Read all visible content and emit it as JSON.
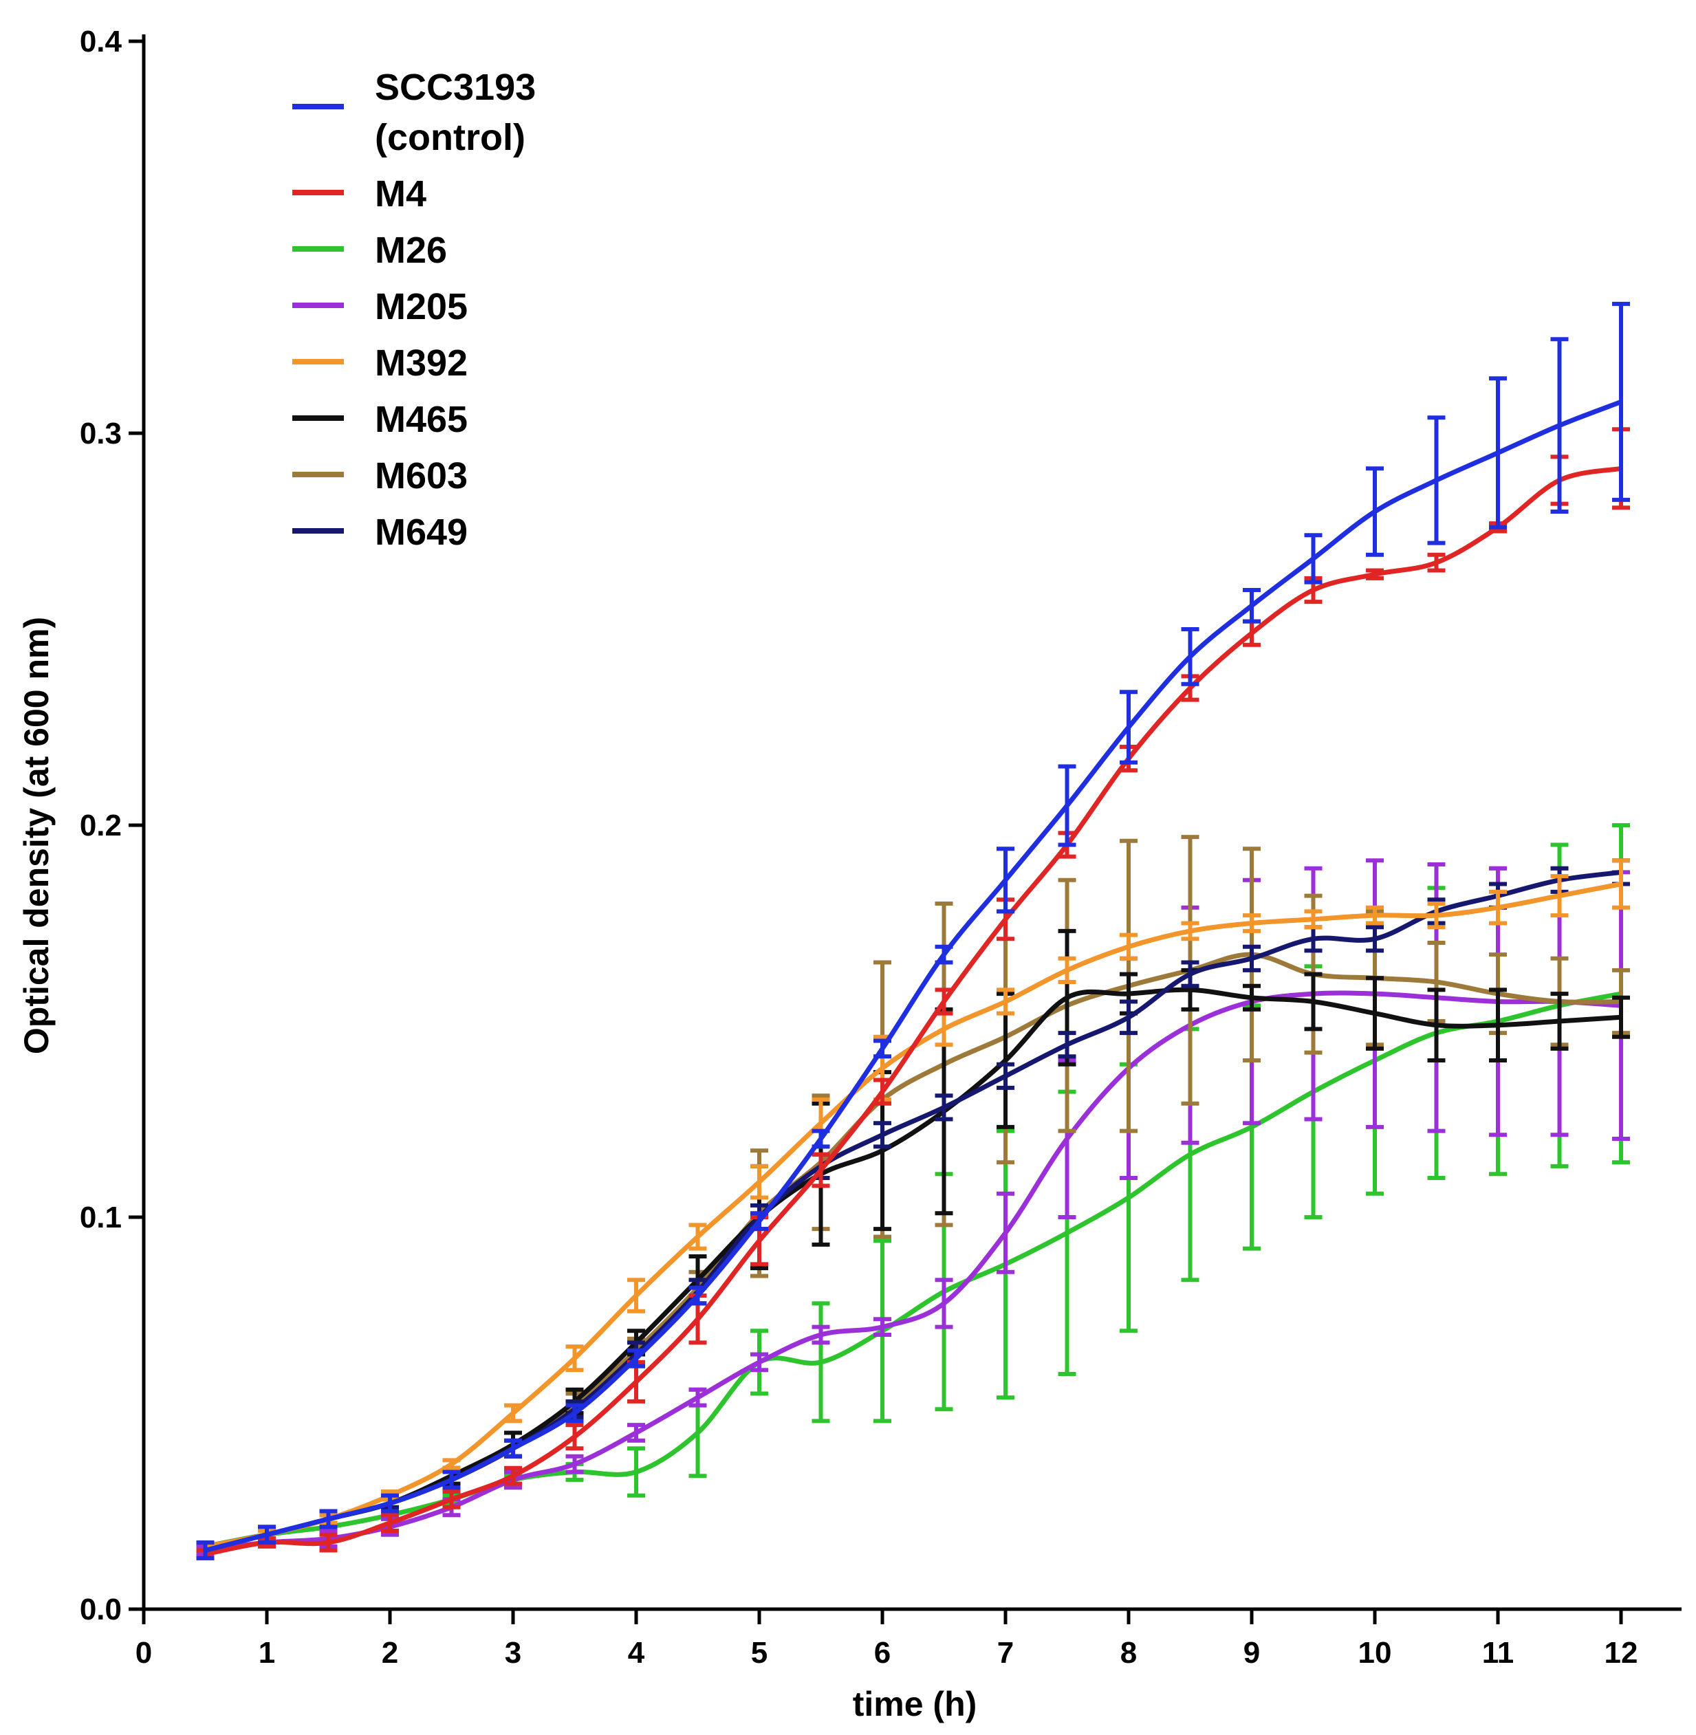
{
  "chart_data": {
    "type": "line",
    "title": "",
    "xlabel": "time (h)",
    "ylabel": "Optical density (at 600 nm)",
    "xlim": [
      0,
      12.5
    ],
    "ylim": [
      0,
      0.4
    ],
    "x_ticks": [
      "0",
      "1",
      "2",
      "3",
      "4",
      "5",
      "6",
      "7",
      "8",
      "9",
      "10",
      "11",
      "12"
    ],
    "y_ticks": [
      "0.0",
      "0.1",
      "0.2",
      "0.3",
      "0.4"
    ],
    "legend_position": "top-left",
    "x": [
      0.5,
      1,
      1.5,
      2,
      2.5,
      3,
      3.5,
      4,
      4.5,
      5,
      5.5,
      6,
      6.5,
      7,
      7.5,
      8,
      8.5,
      9,
      9.5,
      10,
      10.5,
      11,
      11.5,
      12
    ],
    "series": [
      {
        "name": "SCC3193",
        "name_line2": "(control)",
        "color": "#1f2fe0",
        "values": [
          0.015,
          0.019,
          0.023,
          0.027,
          0.033,
          0.041,
          0.05,
          0.064,
          0.08,
          0.099,
          0.12,
          0.143,
          0.167,
          0.186,
          0.205,
          0.225,
          0.243,
          0.256,
          0.268,
          0.28,
          0.288,
          0.295,
          0.302,
          0.308
        ],
        "errors": [
          0.002,
          0.002,
          0.002,
          0.002,
          0.002,
          0.002,
          0.002,
          0.002,
          0.002,
          0.002,
          0.002,
          0.002,
          0.002,
          0.008,
          0.01,
          0.009,
          0.007,
          0.004,
          0.006,
          0.011,
          0.016,
          0.019,
          0.022,
          0.025
        ]
      },
      {
        "name": "M4",
        "color": "#e02525",
        "values": [
          0.014,
          0.017,
          0.017,
          0.022,
          0.028,
          0.034,
          0.044,
          0.058,
          0.074,
          0.094,
          0.112,
          0.132,
          0.155,
          0.176,
          0.195,
          0.217,
          0.235,
          0.249,
          0.26,
          0.264,
          0.267,
          0.276,
          0.288,
          0.291
        ],
        "errors": [
          0.001,
          0.001,
          0.002,
          0.002,
          0.002,
          0.002,
          0.003,
          0.005,
          0.006,
          0.006,
          0.004,
          0.003,
          0.003,
          0.005,
          0.003,
          0.003,
          0.003,
          0.003,
          0.003,
          0.001,
          0.002,
          0.001,
          0.006,
          0.01
        ]
      },
      {
        "name": "M26",
        "color": "#2ec42e",
        "values": [
          0.016,
          0.019,
          0.021,
          0.024,
          0.028,
          0.033,
          0.035,
          0.035,
          0.045,
          0.063,
          0.063,
          0.071,
          0.081,
          0.088,
          0.096,
          0.105,
          0.116,
          0.123,
          0.132,
          0.14,
          0.147,
          0.15,
          0.154,
          0.157
        ],
        "errors": [
          0.001,
          0.001,
          0.001,
          0.001,
          0.001,
          0.001,
          0.002,
          0.006,
          0.011,
          0.008,
          0.015,
          0.023,
          0.03,
          0.034,
          0.036,
          0.034,
          0.032,
          0.031,
          0.032,
          0.034,
          0.037,
          0.039,
          0.041,
          0.043
        ]
      },
      {
        "name": "M205",
        "color": "#9b30d9",
        "values": [
          0.015,
          0.017,
          0.018,
          0.021,
          0.026,
          0.033,
          0.037,
          0.045,
          0.054,
          0.063,
          0.07,
          0.072,
          0.078,
          0.096,
          0.12,
          0.138,
          0.149,
          0.155,
          0.157,
          0.157,
          0.156,
          0.155,
          0.155,
          0.154
        ],
        "errors": [
          0.001,
          0.001,
          0.002,
          0.002,
          0.002,
          0.002,
          0.002,
          0.002,
          0.002,
          0.002,
          0.002,
          0.002,
          0.006,
          0.01,
          0.02,
          0.028,
          0.03,
          0.031,
          0.032,
          0.034,
          0.034,
          0.034,
          0.034,
          0.034
        ]
      },
      {
        "name": "M392",
        "color": "#f2952a",
        "values": [
          0.016,
          0.019,
          0.023,
          0.029,
          0.037,
          0.05,
          0.064,
          0.08,
          0.095,
          0.109,
          0.124,
          0.138,
          0.148,
          0.155,
          0.163,
          0.169,
          0.173,
          0.175,
          0.176,
          0.177,
          0.177,
          0.179,
          0.182,
          0.185
        ],
        "errors": [
          0.001,
          0.001,
          0.001,
          0.001,
          0.001,
          0.002,
          0.003,
          0.004,
          0.003,
          0.004,
          0.006,
          0.008,
          0.004,
          0.003,
          0.003,
          0.003,
          0.002,
          0.002,
          0.002,
          0.002,
          0.003,
          0.004,
          0.005,
          0.006
        ]
      },
      {
        "name": "M465",
        "color": "#111111",
        "values": [
          0.016,
          0.019,
          0.023,
          0.027,
          0.034,
          0.042,
          0.053,
          0.068,
          0.084,
          0.1,
          0.111,
          0.117,
          0.127,
          0.14,
          0.156,
          0.157,
          0.158,
          0.156,
          0.155,
          0.152,
          0.149,
          0.149,
          0.15,
          0.151
        ],
        "errors": [
          0.001,
          0.001,
          0.002,
          0.002,
          0.002,
          0.003,
          0.003,
          0.003,
          0.006,
          0.013,
          0.018,
          0.02,
          0.026,
          0.017,
          0.017,
          0.005,
          0.005,
          0.003,
          0.007,
          0.009,
          0.009,
          0.009,
          0.007,
          0.005
        ]
      },
      {
        "name": "M603",
        "color": "#9e7a3a",
        "values": [
          0.016,
          0.019,
          0.023,
          0.027,
          0.033,
          0.041,
          0.052,
          0.066,
          0.082,
          0.101,
          0.114,
          0.13,
          0.139,
          0.146,
          0.154,
          0.159,
          0.163,
          0.167,
          0.162,
          0.161,
          0.16,
          0.157,
          0.155,
          0.155
        ],
        "errors": [
          0.001,
          0.001,
          0.001,
          0.002,
          0.002,
          0.002,
          0.003,
          0.003,
          0.004,
          0.016,
          0.017,
          0.035,
          0.041,
          0.032,
          0.032,
          0.037,
          0.034,
          0.027,
          0.02,
          0.017,
          0.01,
          0.01,
          0.011,
          0.008
        ]
      },
      {
        "name": "M649",
        "color": "#15186e",
        "values": [
          0.016,
          0.019,
          0.023,
          0.027,
          0.033,
          0.041,
          0.051,
          0.065,
          0.081,
          0.1,
          0.113,
          0.121,
          0.128,
          0.136,
          0.144,
          0.151,
          0.162,
          0.166,
          0.171,
          0.171,
          0.178,
          0.182,
          0.186,
          0.188
        ],
        "errors": [
          0.001,
          0.001,
          0.001,
          0.001,
          0.002,
          0.002,
          0.002,
          0.003,
          0.003,
          0.003,
          0.003,
          0.003,
          0.003,
          0.003,
          0.003,
          0.004,
          0.003,
          0.003,
          0.003,
          0.003,
          0.003,
          0.003,
          0.003,
          0.003
        ]
      }
    ]
  }
}
